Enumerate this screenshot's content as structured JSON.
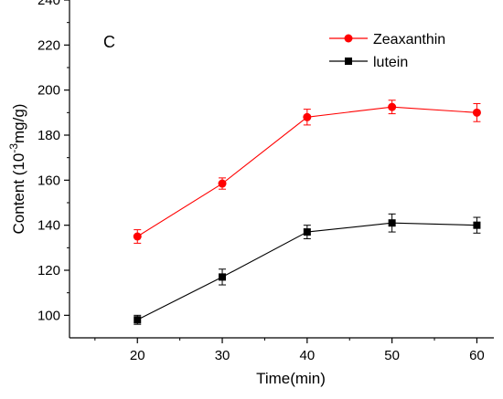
{
  "chart_data": {
    "type": "line",
    "panel_label": "C",
    "xlabel": "Time(min)",
    "ylabel": "Content (10",
    "ylabel_sup": "-3",
    "ylabel_suffix": "mg/g)",
    "x": [
      20,
      30,
      40,
      50,
      60
    ],
    "xlim": [
      12,
      62
    ],
    "ylim": [
      90,
      240
    ],
    "x_ticks": [
      20,
      30,
      40,
      50,
      60
    ],
    "y_ticks": [
      100,
      120,
      140,
      160,
      180,
      200,
      220,
      240
    ],
    "grid": false,
    "legend_position": "top-right",
    "series": [
      {
        "name": "Zeaxanthin",
        "values": [
          135,
          158.5,
          188,
          192.5,
          190
        ],
        "errors": [
          3,
          2.5,
          3.5,
          3,
          4
        ],
        "color": "#ff0000",
        "marker": "circle"
      },
      {
        "name": "lutein",
        "values": [
          98,
          117,
          137,
          141,
          140
        ],
        "errors": [
          2,
          3.5,
          3,
          4,
          3.5
        ],
        "color": "#000000",
        "marker": "square"
      }
    ]
  }
}
